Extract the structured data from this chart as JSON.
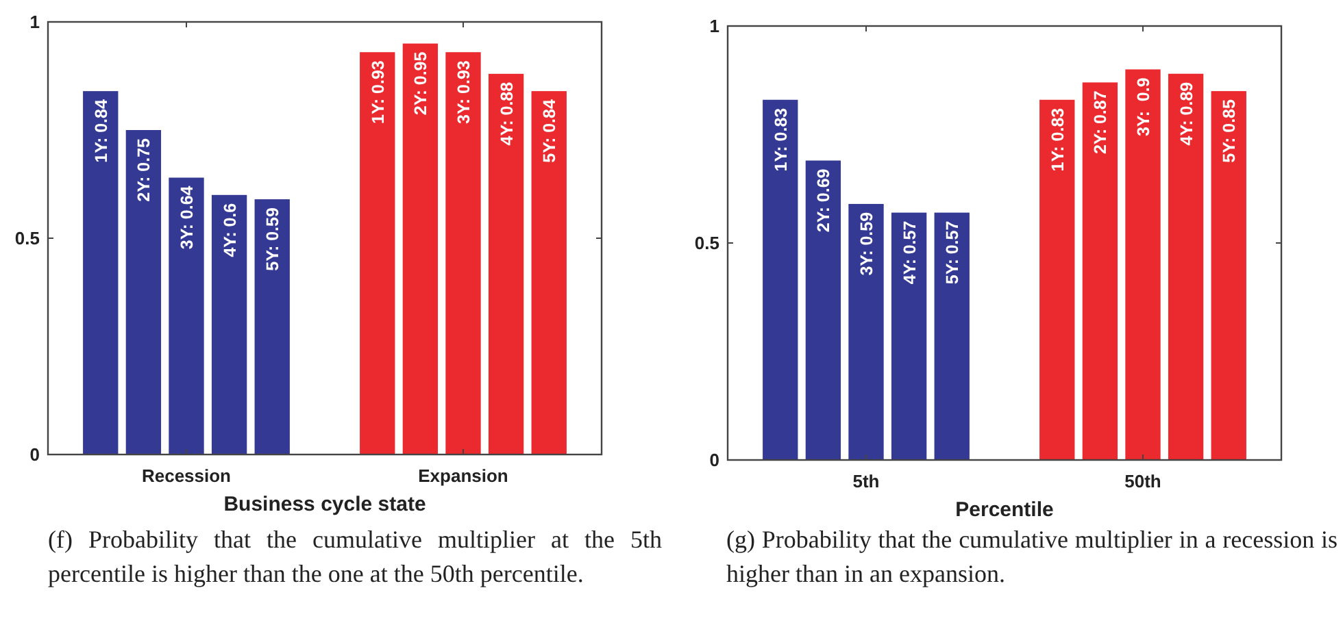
{
  "chart_data": [
    {
      "type": "bar",
      "xlabel": "Business cycle state",
      "categories": [
        "Recession",
        "Expansion"
      ],
      "ylim": [
        0,
        1
      ],
      "yticks": [
        0,
        0.5,
        1
      ],
      "grid": false,
      "series": [
        {
          "colors": [
            "#343a94",
            "#ea2a2e"
          ],
          "values": [
            0.84,
            0.93
          ],
          "value_labels": [
            "1Y: 0.84",
            "1Y: 0.93"
          ]
        },
        {
          "colors": [
            "#343a94",
            "#ea2a2e"
          ],
          "values": [
            0.75,
            0.95
          ],
          "value_labels": [
            "2Y: 0.75",
            "2Y: 0.95"
          ]
        },
        {
          "colors": [
            "#343a94",
            "#ea2a2e"
          ],
          "values": [
            0.64,
            0.93
          ],
          "value_labels": [
            "3Y: 0.64",
            "3Y: 0.93"
          ]
        },
        {
          "colors": [
            "#343a94",
            "#ea2a2e"
          ],
          "values": [
            0.6,
            0.88
          ],
          "value_labels": [
            "4Y: 0.6",
            "4Y: 0.88"
          ]
        },
        {
          "colors": [
            "#343a94",
            "#ea2a2e"
          ],
          "values": [
            0.59,
            0.84
          ],
          "value_labels": [
            "5Y: 0.59",
            "5Y: 0.84"
          ]
        }
      ],
      "annotations": [
        "(f) Probability that the cumulative multiplier at the 5th percentile is higher than the one at the 50th percentile."
      ]
    },
    {
      "type": "bar",
      "xlabel": "Percentile",
      "categories": [
        "5th",
        "50th"
      ],
      "ylim": [
        0,
        1
      ],
      "yticks": [
        0,
        0.5,
        1
      ],
      "grid": false,
      "series": [
        {
          "colors": [
            "#343a94",
            "#ea2a2e"
          ],
          "values": [
            0.83,
            0.83
          ],
          "value_labels": [
            "1Y: 0.83",
            "1Y: 0.83"
          ]
        },
        {
          "colors": [
            "#343a94",
            "#ea2a2e"
          ],
          "values": [
            0.69,
            0.87
          ],
          "value_labels": [
            "2Y: 0.69",
            "2Y: 0.87"
          ]
        },
        {
          "colors": [
            "#343a94",
            "#ea2a2e"
          ],
          "values": [
            0.59,
            0.9
          ],
          "value_labels": [
            "3Y: 0.59",
            "3Y:  0.9"
          ]
        },
        {
          "colors": [
            "#343a94",
            "#ea2a2e"
          ],
          "values": [
            0.57,
            0.89
          ],
          "value_labels": [
            "4Y: 0.57",
            "4Y: 0.89"
          ]
        },
        {
          "colors": [
            "#343a94",
            "#ea2a2e"
          ],
          "values": [
            0.57,
            0.85
          ],
          "value_labels": [
            "5Y: 0.57",
            "5Y: 0.85"
          ]
        }
      ],
      "annotations": [
        "(g) Probability that the cumulative multiplier in a recession is higher than in an expansion."
      ]
    }
  ]
}
